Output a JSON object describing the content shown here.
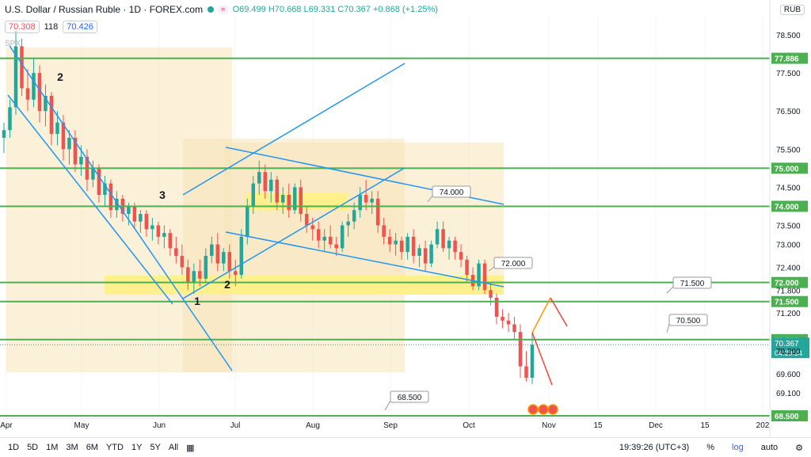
{
  "header": {
    "title": "U.S. Dollar / Russian Ruble · 1D · FOREX.com",
    "ohlc": "O69.499 H70.668 L69.331 C70.367 +0.868 (+1.25%)",
    "bid": "70.308",
    "spread": "118",
    "ask": "70.426",
    "overlay_label": "SPX",
    "currency": "RUB"
  },
  "toolbar": {
    "ranges": [
      "1D",
      "5D",
      "1M",
      "3M",
      "6M",
      "YTD",
      "1Y",
      "5Y",
      "All"
    ],
    "clock": "19:39:26 (UTC+3)",
    "percent": "%",
    "log": "log",
    "auto": "auto"
  },
  "colors": {
    "up": "#26a69a",
    "down": "#ef5350",
    "hline": "#4caf50",
    "channel": "#2196f3",
    "zone": "#f8e4b8",
    "band": "#fff17a"
  },
  "chart_data": {
    "type": "candlestick",
    "price_axis": {
      "ticks": [
        "78.500",
        "77.500",
        "76.500",
        "75.500",
        "74.500",
        "73.500",
        "73.000",
        "72.400",
        "71.800",
        "71.200",
        "70.200",
        "69.600",
        "69.100"
      ],
      "ylim": [
        68.5,
        79.0
      ]
    },
    "time_axis": [
      "Apr",
      "May",
      "Jun",
      "Jul",
      "Aug",
      "Sep",
      "Oct",
      "Nov",
      "15",
      "Dec",
      "15",
      "202"
    ],
    "last_price": "70.367",
    "countdown": "04:20:34",
    "horizontal_levels": [
      "77.886",
      "75.000",
      "74.000",
      "72.000",
      "71.500",
      "70.500",
      "68.500"
    ],
    "annotations": [
      {
        "text": "74.000"
      },
      {
        "text": "72.000"
      },
      {
        "text": "71.500"
      },
      {
        "text": "70.500"
      },
      {
        "text": "68.500"
      }
    ],
    "wave_labels": [
      "2",
      "3",
      "1",
      "2"
    ],
    "ohlc_path": [
      [
        75.8,
        76.2,
        75.4,
        76.0
      ],
      [
        76.0,
        76.8,
        75.8,
        76.6
      ],
      [
        76.6,
        78.6,
        76.4,
        78.2
      ],
      [
        78.2,
        78.4,
        76.9,
        77.1
      ],
      [
        77.1,
        77.6,
        76.5,
        76.8
      ],
      [
        76.8,
        77.9,
        76.6,
        77.5
      ],
      [
        77.5,
        77.7,
        76.2,
        76.5
      ],
      [
        76.5,
        77.2,
        76.1,
        76.9
      ],
      [
        76.9,
        77.0,
        75.6,
        75.9
      ],
      [
        75.9,
        76.5,
        75.6,
        76.2
      ],
      [
        76.2,
        76.4,
        75.2,
        75.5
      ],
      [
        75.5,
        76.0,
        75.1,
        75.8
      ],
      [
        75.8,
        76.0,
        74.9,
        75.1
      ],
      [
        75.1,
        75.6,
        74.8,
        75.3
      ],
      [
        75.3,
        75.5,
        74.4,
        74.7
      ],
      [
        74.7,
        75.2,
        74.5,
        75.0
      ],
      [
        75.0,
        75.1,
        74.1,
        74.3
      ],
      [
        74.3,
        74.8,
        74.0,
        74.6
      ],
      [
        74.6,
        74.7,
        73.7,
        73.9
      ],
      [
        73.9,
        74.4,
        73.7,
        74.2
      ],
      [
        74.2,
        74.3,
        73.6,
        73.8
      ],
      [
        73.8,
        74.1,
        73.5,
        74.0
      ],
      [
        74.0,
        74.1,
        73.4,
        73.6
      ],
      [
        73.6,
        73.9,
        73.3,
        73.8
      ],
      [
        73.8,
        73.9,
        73.2,
        73.4
      ],
      [
        73.4,
        73.7,
        73.1,
        73.5
      ],
      [
        73.5,
        73.6,
        73.0,
        73.2
      ],
      [
        73.2,
        73.5,
        72.9,
        73.3
      ],
      [
        73.3,
        73.4,
        72.7,
        72.9
      ],
      [
        72.9,
        73.2,
        72.5,
        72.7
      ],
      [
        72.7,
        73.0,
        72.2,
        72.4
      ],
      [
        72.4,
        72.6,
        71.8,
        72.0
      ],
      [
        72.0,
        72.5,
        71.7,
        72.3
      ],
      [
        72.3,
        72.6,
        71.9,
        72.1
      ],
      [
        72.1,
        72.9,
        72.0,
        72.7
      ],
      [
        72.7,
        73.2,
        72.5,
        73.0
      ],
      [
        73.0,
        73.3,
        72.3,
        72.5
      ],
      [
        72.5,
        72.9,
        72.3,
        72.8
      ],
      [
        72.8,
        73.0,
        72.1,
        72.3
      ],
      [
        72.3,
        72.6,
        71.9,
        72.2
      ],
      [
        72.2,
        73.4,
        72.1,
        73.2
      ],
      [
        73.2,
        74.2,
        73.0,
        74.0
      ],
      [
        74.0,
        74.8,
        73.8,
        74.6
      ],
      [
        74.6,
        75.2,
        74.3,
        74.9
      ],
      [
        74.9,
        75.1,
        74.2,
        74.4
      ],
      [
        74.4,
        74.9,
        74.1,
        74.7
      ],
      [
        74.7,
        74.8,
        73.9,
        74.1
      ],
      [
        74.1,
        74.5,
        73.8,
        74.3
      ],
      [
        74.3,
        74.6,
        73.7,
        73.9
      ],
      [
        73.9,
        74.6,
        73.8,
        74.5
      ],
      [
        74.5,
        74.7,
        73.6,
        73.8
      ],
      [
        73.8,
        74.0,
        73.3,
        73.5
      ],
      [
        73.5,
        73.7,
        73.1,
        73.4
      ],
      [
        73.4,
        73.6,
        72.9,
        73.1
      ],
      [
        73.1,
        73.4,
        72.8,
        73.2
      ],
      [
        73.2,
        73.5,
        72.9,
        73.0
      ],
      [
        73.0,
        73.2,
        72.7,
        72.9
      ],
      [
        72.9,
        73.6,
        72.8,
        73.5
      ],
      [
        73.5,
        73.8,
        73.2,
        73.6
      ],
      [
        73.6,
        74.1,
        73.4,
        73.9
      ],
      [
        73.9,
        74.5,
        73.7,
        74.3
      ],
      [
        74.3,
        74.7,
        73.9,
        74.1
      ],
      [
        74.1,
        74.4,
        73.8,
        74.2
      ],
      [
        74.2,
        74.4,
        73.3,
        73.5
      ],
      [
        73.5,
        73.7,
        73.0,
        73.2
      ],
      [
        73.2,
        73.4,
        72.8,
        73.0
      ],
      [
        73.0,
        73.3,
        72.7,
        73.1
      ],
      [
        73.1,
        73.2,
        72.6,
        72.8
      ],
      [
        72.8,
        73.3,
        72.6,
        73.2
      ],
      [
        73.2,
        73.4,
        72.5,
        72.7
      ],
      [
        72.7,
        73.0,
        72.4,
        72.9
      ],
      [
        72.9,
        73.1,
        72.3,
        72.5
      ],
      [
        72.5,
        73.1,
        72.4,
        73.0
      ],
      [
        73.0,
        73.6,
        72.9,
        73.4
      ],
      [
        73.4,
        73.6,
        72.8,
        72.9
      ],
      [
        72.9,
        73.2,
        72.6,
        73.1
      ],
      [
        73.1,
        73.2,
        72.6,
        72.8
      ],
      [
        72.8,
        73.0,
        72.4,
        72.6
      ],
      [
        72.6,
        72.7,
        72.0,
        72.2
      ],
      [
        72.2,
        72.4,
        71.8,
        71.9
      ],
      [
        71.9,
        72.6,
        71.8,
        72.5
      ],
      [
        72.5,
        72.6,
        71.7,
        71.8
      ],
      [
        71.8,
        72.0,
        71.4,
        71.6
      ],
      [
        71.6,
        71.7,
        70.9,
        71.1
      ],
      [
        71.1,
        71.3,
        70.8,
        71.0
      ],
      [
        71.0,
        71.2,
        70.7,
        70.9
      ],
      [
        70.9,
        71.1,
        70.5,
        70.7
      ],
      [
        70.7,
        70.9,
        69.5,
        69.8
      ],
      [
        69.8,
        70.2,
        69.4,
        69.5
      ],
      [
        69.499,
        70.668,
        69.331,
        70.367
      ]
    ]
  }
}
